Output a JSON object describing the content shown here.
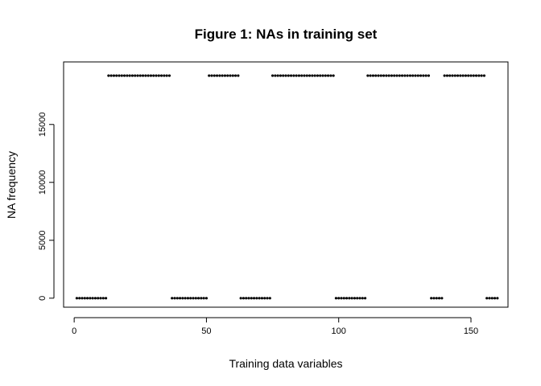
{
  "chart_data": {
    "type": "scatter",
    "title": "Figure 1: NAs in training set",
    "xlabel": "Training data variables",
    "ylabel": "NA frequency",
    "xlim": [
      -4,
      164
    ],
    "ylim": [
      -778,
      20400
    ],
    "x_ticks": [
      0,
      50,
      100,
      150
    ],
    "y_ticks": [
      0,
      5000,
      10000,
      15000
    ],
    "x_tick_labels": [
      "0",
      "50",
      "100",
      "150"
    ],
    "y_tick_labels": [
      "0",
      "5000",
      "10000",
      "15000"
    ],
    "grid": false,
    "legend": "none",
    "point_color": "#000000",
    "series": [
      {
        "x": [
          1,
          2,
          3,
          4,
          5,
          6,
          7,
          8,
          9,
          10,
          11,
          12,
          13,
          14,
          15,
          16,
          17,
          18,
          19,
          20,
          21,
          22,
          23,
          24,
          25,
          26,
          27,
          28,
          29,
          30,
          31,
          32,
          33,
          34,
          35,
          36,
          37,
          38,
          39,
          40,
          41,
          42,
          43,
          44,
          45,
          46,
          47,
          48,
          49,
          50,
          51,
          52,
          53,
          54,
          55,
          56,
          57,
          58,
          59,
          60,
          61,
          62,
          63,
          64,
          65,
          66,
          67,
          68,
          69,
          70,
          71,
          72,
          73,
          74,
          75,
          76,
          77,
          78,
          79,
          80,
          81,
          82,
          83,
          84,
          85,
          86,
          87,
          88,
          89,
          90,
          91,
          92,
          93,
          94,
          95,
          96,
          97,
          98,
          99,
          100,
          101,
          102,
          103,
          104,
          105,
          106,
          107,
          108,
          109,
          110,
          111,
          112,
          113,
          114,
          115,
          116,
          117,
          118,
          119,
          120,
          121,
          122,
          123,
          124,
          125,
          126,
          127,
          128,
          129,
          130,
          131,
          132,
          133,
          134,
          135,
          136,
          137,
          138,
          139,
          140,
          141,
          142,
          143,
          144,
          145,
          146,
          147,
          148,
          149,
          150,
          151,
          152,
          153,
          154,
          155,
          156,
          157,
          158,
          159,
          160
        ],
        "y": [
          0,
          0,
          0,
          0,
          0,
          0,
          0,
          0,
          0,
          0,
          0,
          0,
          19216,
          19216,
          19216,
          19216,
          19216,
          19216,
          19216,
          19216,
          19216,
          19216,
          19216,
          19216,
          19216,
          19216,
          19216,
          19216,
          19216,
          19216,
          19216,
          19216,
          19216,
          19216,
          19216,
          19216,
          0,
          0,
          0,
          0,
          0,
          0,
          0,
          0,
          0,
          0,
          0,
          0,
          0,
          0,
          19216,
          19216,
          19216,
          19216,
          19216,
          19216,
          19216,
          19216,
          19216,
          19216,
          19216,
          19216,
          0,
          0,
          0,
          0,
          0,
          0,
          0,
          0,
          0,
          0,
          0,
          0,
          19216,
          19216,
          19216,
          19216,
          19216,
          19216,
          19216,
          19216,
          19216,
          19216,
          19216,
          19216,
          19216,
          19216,
          19216,
          19216,
          19216,
          19216,
          19216,
          19216,
          19216,
          19216,
          19216,
          19216,
          0,
          0,
          0,
          0,
          0,
          0,
          0,
          0,
          0,
          0,
          0,
          0,
          19216,
          19216,
          19216,
          19216,
          19216,
          19216,
          19216,
          19216,
          19216,
          19216,
          19216,
          19216,
          19216,
          19216,
          19216,
          19216,
          19216,
          19216,
          19216,
          19216,
          19216,
          19216,
          19216,
          19216,
          0,
          0,
          0,
          0,
          0,
          19216,
          19216,
          19216,
          19216,
          19216,
          19216,
          19216,
          19216,
          19216,
          19216,
          19216,
          19216,
          19216,
          19216,
          19216,
          19216,
          0,
          0,
          0,
          0,
          0
        ]
      }
    ]
  }
}
